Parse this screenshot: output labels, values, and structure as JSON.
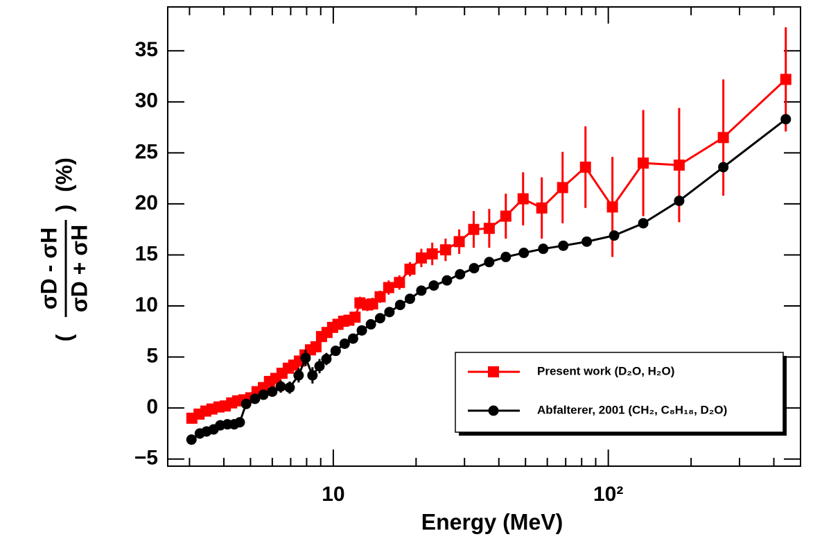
{
  "chart_data": {
    "type": "scatter",
    "xlabel": "Energy (MeV)",
    "ylabel": {
      "open": "(",
      "numerator": "σD - σH",
      "denominator": "σD + σH",
      "close": ")",
      "unit": "(%)"
    },
    "xscale": "log",
    "xlim": [
      2.5,
      500
    ],
    "ylim": [
      -5.7,
      39.3
    ],
    "xticks": [
      10,
      {
        "value": 100,
        "label": "10²"
      }
    ],
    "xminorticks": [
      3,
      4,
      5,
      6,
      7,
      8,
      9,
      20,
      30,
      40,
      50,
      60,
      70,
      80,
      90,
      200,
      300,
      400,
      500
    ],
    "yticks": [
      {
        "value": -5,
        "label": "−5"
      },
      0,
      5,
      10,
      15,
      20,
      25,
      30,
      35
    ],
    "legend": "lower right",
    "series": [
      {
        "name": "Present work (D₂O, H₂O)",
        "color": "#ff0000",
        "marker": "square",
        "x": [
          3.06,
          3.25,
          3.44,
          3.62,
          3.84,
          4.05,
          4.27,
          4.49,
          4.73,
          5.01,
          5.28,
          5.57,
          5.86,
          6.18,
          6.51,
          6.86,
          7.18,
          7.53,
          7.89,
          8.26,
          8.65,
          9.06,
          9.49,
          9.94,
          10.4,
          10.9,
          11.4,
          12.0,
          12.5,
          13.3,
          13.9,
          14.8,
          15.9,
          17.4,
          19.0,
          20.9,
          22.9,
          25.6,
          28.7,
          32.4,
          36.9,
          42.4,
          49.0,
          57.3,
          68.2,
          82.6,
          103.5,
          134,
          181,
          262,
          442
        ],
        "values": [
          -1.0,
          -0.6,
          -0.3,
          -0.1,
          0.1,
          0.2,
          0.5,
          0.7,
          0.8,
          1.0,
          1.6,
          2.0,
          2.6,
          2.9,
          3.4,
          3.9,
          4.2,
          4.6,
          5.2,
          5.7,
          6.0,
          7.0,
          7.4,
          7.9,
          8.2,
          8.5,
          8.6,
          8.9,
          10.3,
          10.1,
          10.2,
          10.9,
          11.8,
          12.3,
          13.6,
          14.7,
          15.1,
          15.5,
          16.3,
          17.5,
          17.6,
          18.8,
          20.5,
          19.6,
          21.6,
          23.6,
          19.7,
          24.0,
          23.8,
          26.5,
          32.2
        ],
        "errors": [
          0.4,
          0.4,
          0.4,
          0.4,
          0.4,
          0.4,
          0.4,
          0.4,
          0.4,
          0.4,
          0.4,
          0.4,
          0.4,
          0.4,
          0.4,
          0.4,
          0.4,
          0.4,
          0.4,
          0.4,
          0.4,
          0.4,
          0.4,
          0.4,
          0.4,
          0.5,
          0.5,
          0.5,
          0.6,
          0.6,
          0.6,
          0.6,
          0.7,
          0.7,
          0.7,
          0.9,
          1.1,
          1.1,
          1.2,
          1.8,
          1.9,
          2.2,
          2.6,
          3.0,
          3.5,
          4.0,
          4.9,
          5.2,
          5.6,
          5.7,
          5.1
        ]
      },
      {
        "name": "Abfalterer, 2001 (CH₂, C₈H₁₈, D₂O)",
        "color": "#000000",
        "marker": "circle",
        "x": [
          3.05,
          3.27,
          3.46,
          3.67,
          3.88,
          4.12,
          4.36,
          4.57,
          4.82,
          5.19,
          5.57,
          6.0,
          6.44,
          6.94,
          7.48,
          7.93,
          8.4,
          8.91,
          9.44,
          10.2,
          11.0,
          11.8,
          12.7,
          13.7,
          14.8,
          16.0,
          17.5,
          19.0,
          20.9,
          23.2,
          25.9,
          28.9,
          32.5,
          36.9,
          42.4,
          49.3,
          58.0,
          68.6,
          83.5,
          105,
          134,
          181,
          262,
          442
        ],
        "values": [
          -3.1,
          -2.5,
          -2.3,
          -2.1,
          -1.7,
          -1.6,
          -1.6,
          -1.4,
          0.4,
          0.9,
          1.3,
          1.6,
          2.1,
          2.0,
          3.2,
          4.9,
          3.2,
          4.1,
          4.8,
          5.6,
          6.3,
          6.8,
          7.6,
          8.2,
          8.8,
          9.4,
          10.1,
          10.7,
          11.5,
          12.0,
          12.5,
          13.1,
          13.7,
          14.3,
          14.8,
          15.2,
          15.6,
          15.9,
          16.3,
          16.9,
          18.1,
          20.3,
          23.6,
          28.3
        ],
        "errors": [
          0.5,
          0.5,
          0.5,
          0.5,
          0.5,
          0.5,
          0.5,
          0.5,
          0.5,
          0.5,
          0.5,
          0.5,
          0.6,
          0.6,
          0.7,
          0.8,
          0.8,
          0.7,
          0.6,
          0.4,
          0.3,
          0.3,
          0.3,
          0.3,
          0.3,
          0.3,
          0.3,
          0.3,
          0.3,
          0.3,
          0.3,
          0.3,
          0.3,
          0.3,
          0.3,
          0.3,
          0.3,
          0.3,
          0.3,
          0.3,
          0.3,
          0.3,
          0.3,
          0.3
        ]
      }
    ]
  }
}
